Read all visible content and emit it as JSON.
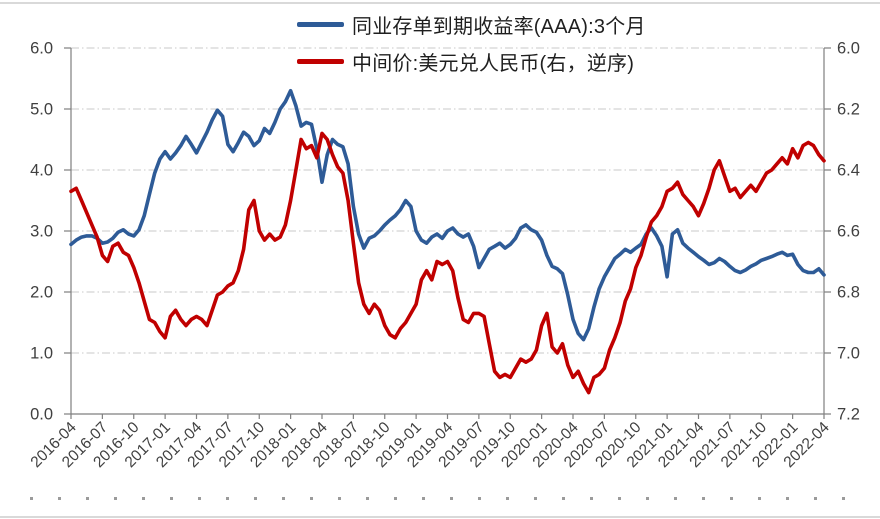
{
  "chart_data": {
    "type": "line",
    "title": "",
    "legend": [
      {
        "label": "同业存单到期收益率(AAA):3个月",
        "color": "#2e5b97",
        "axis": "left"
      },
      {
        "label": "中间价:美元兑人民币(右，逆序)",
        "color": "#c00000",
        "axis": "right"
      }
    ],
    "x_start": "2016-04",
    "x_end": "2022-04",
    "points_per_month": 2,
    "x_tick_labels": [
      "2016-04",
      "2016-07",
      "2016-10",
      "2017-01",
      "2017-04",
      "2017-07",
      "2017-10",
      "2018-01",
      "2018-04",
      "2018-07",
      "2018-10",
      "2019-01",
      "2019-04",
      "2019-07",
      "2019-10",
      "2020-01",
      "2020-04",
      "2020-07",
      "2020-10",
      "2021-01",
      "2021-04",
      "2021-07",
      "2021-10",
      "2022-01",
      "2022-04"
    ],
    "left_axis": {
      "min": 0.0,
      "max": 6.0,
      "ticks": [
        "6.0",
        "5.0",
        "4.0",
        "3.0",
        "2.0",
        "1.0",
        "0.0"
      ]
    },
    "right_axis": {
      "min": 6.0,
      "max": 7.2,
      "inverted": true,
      "ticks": [
        "6.0",
        "6.2",
        "6.4",
        "6.6",
        "6.8",
        "7.0",
        "7.2"
      ]
    },
    "grid": {
      "horizontal": true,
      "style": "dash-dot",
      "color": "#c9c9c9",
      "legend_position": "top-center"
    },
    "series": [
      {
        "name": "同业存单到期收益率(AAA):3个月",
        "axis": "left",
        "color": "#2e5b97",
        "values": [
          2.78,
          2.85,
          2.9,
          2.92,
          2.92,
          2.88,
          2.8,
          2.82,
          2.88,
          2.98,
          3.02,
          2.95,
          2.92,
          3.02,
          3.25,
          3.6,
          3.95,
          4.18,
          4.3,
          4.18,
          4.28,
          4.4,
          4.55,
          4.42,
          4.28,
          4.45,
          4.62,
          4.82,
          4.98,
          4.88,
          4.42,
          4.3,
          4.45,
          4.62,
          4.55,
          4.4,
          4.48,
          4.68,
          4.6,
          4.78,
          5.0,
          5.12,
          5.3,
          5.05,
          4.72,
          4.78,
          4.75,
          4.35,
          3.8,
          4.25,
          4.5,
          4.42,
          4.38,
          4.1,
          3.4,
          2.95,
          2.72,
          2.88,
          2.92,
          3.0,
          3.1,
          3.18,
          3.25,
          3.35,
          3.5,
          3.4,
          3.0,
          2.85,
          2.8,
          2.9,
          2.95,
          2.88,
          3.0,
          3.05,
          2.95,
          2.9,
          2.95,
          2.75,
          2.4,
          2.55,
          2.7,
          2.75,
          2.8,
          2.72,
          2.78,
          2.88,
          3.05,
          3.1,
          3.02,
          2.98,
          2.85,
          2.6,
          2.42,
          2.38,
          2.3,
          1.95,
          1.55,
          1.32,
          1.22,
          1.4,
          1.75,
          2.05,
          2.25,
          2.4,
          2.55,
          2.62,
          2.7,
          2.65,
          2.72,
          2.78,
          2.95,
          3.05,
          2.92,
          2.75,
          2.25,
          2.95,
          3.02,
          2.8,
          2.72,
          2.65,
          2.58,
          2.52,
          2.45,
          2.48,
          2.55,
          2.5,
          2.42,
          2.35,
          2.32,
          2.36,
          2.42,
          2.46,
          2.52,
          2.55,
          2.58,
          2.62,
          2.65,
          2.6,
          2.62,
          2.45,
          2.35,
          2.32,
          2.32,
          2.38,
          2.28
        ]
      },
      {
        "name": "中间价:美元兑人民币(右，逆序)",
        "axis": "right",
        "color": "#c00000",
        "values": [
          6.47,
          6.46,
          6.5,
          6.54,
          6.58,
          6.62,
          6.68,
          6.7,
          6.65,
          6.64,
          6.67,
          6.68,
          6.72,
          6.77,
          6.83,
          6.89,
          6.9,
          6.93,
          6.95,
          6.88,
          6.86,
          6.89,
          6.91,
          6.89,
          6.88,
          6.89,
          6.91,
          6.86,
          6.81,
          6.8,
          6.78,
          6.77,
          6.73,
          6.66,
          6.53,
          6.5,
          6.6,
          6.63,
          6.61,
          6.63,
          6.62,
          6.58,
          6.5,
          6.4,
          6.3,
          6.33,
          6.32,
          6.36,
          6.28,
          6.3,
          6.35,
          6.39,
          6.41,
          6.5,
          6.64,
          6.77,
          6.84,
          6.87,
          6.84,
          6.86,
          6.91,
          6.94,
          6.95,
          6.92,
          6.9,
          6.87,
          6.84,
          6.76,
          6.73,
          6.76,
          6.7,
          6.71,
          6.7,
          6.73,
          6.82,
          6.89,
          6.9,
          6.87,
          6.87,
          6.88,
          6.97,
          7.06,
          7.08,
          7.07,
          7.08,
          7.05,
          7.02,
          7.03,
          7.02,
          6.99,
          6.91,
          6.87,
          6.98,
          7.0,
          6.97,
          7.04,
          7.08,
          7.06,
          7.1,
          7.13,
          7.08,
          7.07,
          7.05,
          6.99,
          6.95,
          6.9,
          6.83,
          6.79,
          6.72,
          6.68,
          6.62,
          6.57,
          6.55,
          6.52,
          6.47,
          6.46,
          6.44,
          6.48,
          6.5,
          6.52,
          6.55,
          6.51,
          6.46,
          6.4,
          6.37,
          6.42,
          6.47,
          6.46,
          6.49,
          6.47,
          6.45,
          6.47,
          6.44,
          6.41,
          6.4,
          6.38,
          6.36,
          6.38,
          6.33,
          6.36,
          6.32,
          6.31,
          6.32,
          6.35,
          6.37
        ]
      }
    ]
  }
}
